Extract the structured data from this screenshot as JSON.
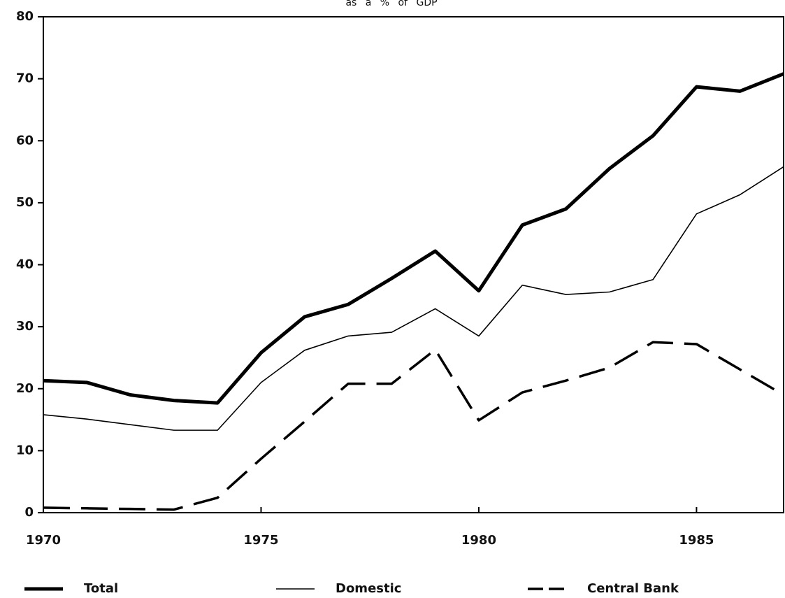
{
  "chart_data": {
    "type": "line",
    "title": "as a % of GDP",
    "x": [
      1970,
      1971,
      1972,
      1973,
      1974,
      1975,
      1976,
      1977,
      1978,
      1979,
      1980,
      1981,
      1982,
      1983,
      1984,
      1985,
      1986,
      1987
    ],
    "series": [
      {
        "name": "Total",
        "color": "#000000",
        "style": "thick",
        "values": [
          21.3,
          21,
          19,
          18.1,
          17.7,
          25.8,
          31.6,
          33.6,
          37.8,
          42.2,
          35.8,
          46.4,
          49,
          55.5,
          60.8,
          68.7,
          68,
          70.8
        ]
      },
      {
        "name": "Domestic",
        "color": "#000000",
        "style": "thin",
        "values": [
          15.8,
          15.1,
          14.2,
          13.3,
          13.3,
          21,
          26.2,
          28.5,
          29.1,
          32.9,
          28.5,
          36.7,
          35.2,
          35.6,
          37.6,
          48.2,
          51.3,
          55.8
        ]
      },
      {
        "name": "Central Bank",
        "color": "#000000",
        "style": "dashed",
        "values": [
          0.8,
          0.7,
          0.6,
          0.5,
          2.4,
          8.7,
          14.7,
          20.8,
          20.8,
          26.3,
          14.9,
          19.4,
          21.3,
          23.4,
          27.5,
          27.2,
          23.1,
          19
        ]
      }
    ],
    "xlim": [
      1970,
      1987
    ],
    "xticks": [
      1970,
      1975,
      1980,
      1985
    ],
    "ylim": [
      0,
      80
    ],
    "yticks": [
      0,
      10,
      20,
      30,
      40,
      50,
      60,
      70,
      80
    ],
    "legend": "bottom"
  }
}
